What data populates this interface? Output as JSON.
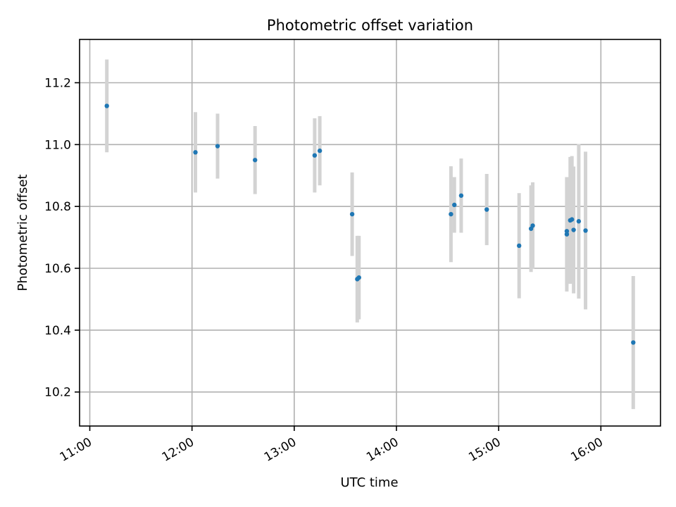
{
  "chart_data": {
    "type": "scatter",
    "title": "Photometric offset variation",
    "xlabel": "UTC time",
    "ylabel": "Photometric offset",
    "x_axis_type": "time",
    "xlim": [
      "10:54",
      "16:35"
    ],
    "ylim": [
      10.09,
      11.34
    ],
    "grid": true,
    "x_ticks": [
      "11:00",
      "12:00",
      "13:00",
      "14:00",
      "15:00",
      "16:00"
    ],
    "y_ticks": [
      10.2,
      10.4,
      10.6,
      10.8,
      11.0,
      11.2
    ],
    "y_tick_labels": [
      "10.2",
      "10.4",
      "10.6",
      "10.8",
      "11.0",
      "11.2"
    ],
    "point_color": "#1f77b4",
    "errorbar_color": "#d3d3d3",
    "points": [
      {
        "x": "11:10",
        "y": 11.125,
        "err": 0.15
      },
      {
        "x": "12:02",
        "y": 10.975,
        "err": 0.13
      },
      {
        "x": "12:15",
        "y": 10.995,
        "err": 0.105
      },
      {
        "x": "12:37",
        "y": 10.95,
        "err": 0.11
      },
      {
        "x": "13:12",
        "y": 10.965,
        "err": 0.12
      },
      {
        "x": "13:15",
        "y": 10.98,
        "err": 0.112
      },
      {
        "x": "13:34",
        "y": 10.775,
        "err": 0.135
      },
      {
        "x": "13:37",
        "y": 10.565,
        "err": 0.14
      },
      {
        "x": "13:38",
        "y": 10.57,
        "err": 0.135
      },
      {
        "x": "14:32",
        "y": 10.775,
        "err": 0.155
      },
      {
        "x": "14:34",
        "y": 10.805,
        "err": 0.09
      },
      {
        "x": "14:38",
        "y": 10.835,
        "err": 0.12
      },
      {
        "x": "14:53",
        "y": 10.79,
        "err": 0.115
      },
      {
        "x": "15:12",
        "y": 10.673,
        "err": 0.17
      },
      {
        "x": "15:19",
        "y": 10.728,
        "err": 0.14
      },
      {
        "x": "15:20",
        "y": 10.738,
        "err": 0.14
      },
      {
        "x": "15:40",
        "y": 10.71,
        "err": 0.185
      },
      {
        "x": "15:40",
        "y": 10.72,
        "err": 0.175
      },
      {
        "x": "15:42",
        "y": 10.755,
        "err": 0.205
      },
      {
        "x": "15:43",
        "y": 10.758,
        "err": 0.205
      },
      {
        "x": "15:44",
        "y": 10.724,
        "err": 0.205
      },
      {
        "x": "15:47",
        "y": 10.752,
        "err": 0.25
      },
      {
        "x": "15:51",
        "y": 10.722,
        "err": 0.255
      },
      {
        "x": "16:19",
        "y": 10.36,
        "err": 0.215
      }
    ]
  }
}
